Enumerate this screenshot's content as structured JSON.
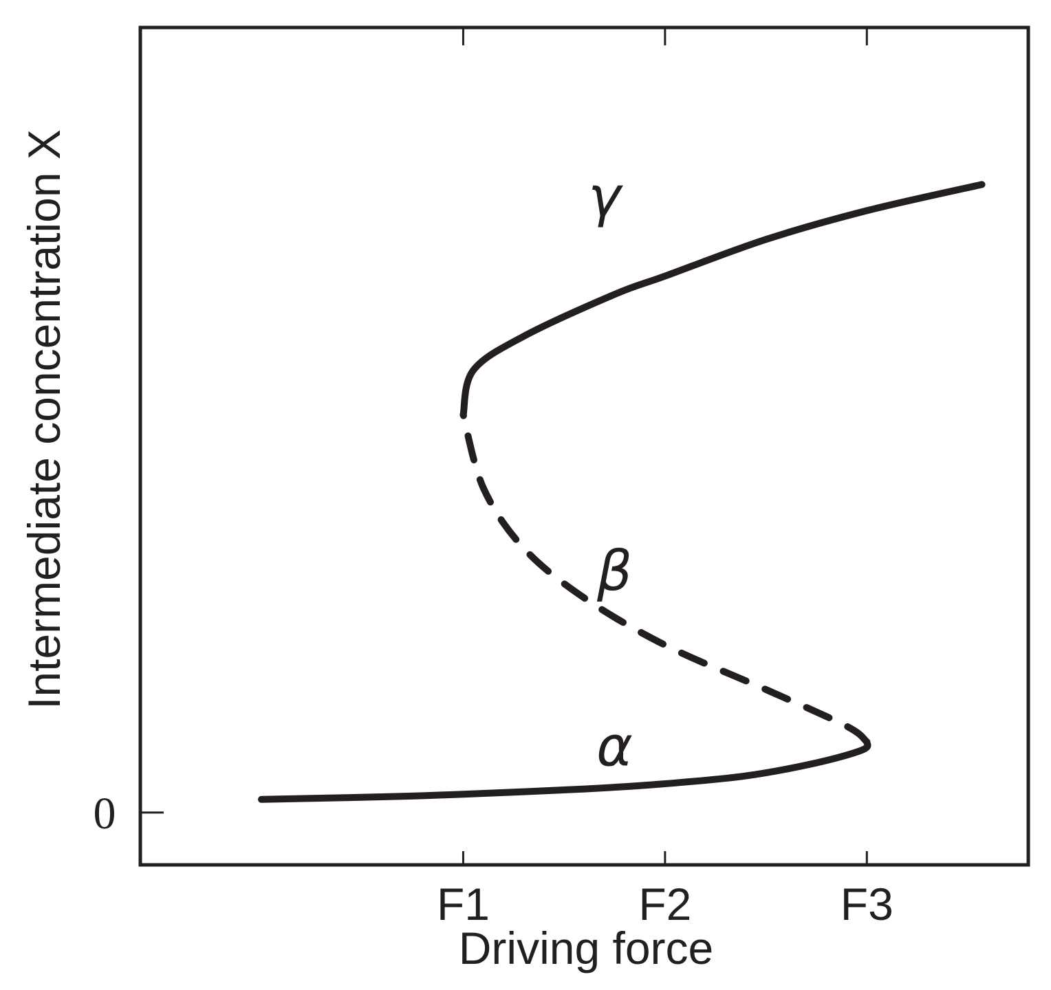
{
  "chart_data": {
    "type": "line",
    "title": "",
    "xlabel": "Driving force",
    "ylabel": "Intermediate  concentration X",
    "x_ticks": [
      "F1",
      "F2",
      "F3"
    ],
    "y_ticks": [
      "0"
    ],
    "grid": false,
    "legend": "none",
    "series": [
      {
        "name": "α",
        "style": "solid",
        "points": [
          [
            0.0,
            0.0
          ],
          [
            0.6,
            0.01
          ],
          [
            1.0,
            0.02
          ],
          [
            1.6,
            0.04
          ],
          [
            2.0,
            0.06
          ],
          [
            2.4,
            0.09
          ],
          [
            2.75,
            0.14
          ],
          [
            2.98,
            0.19
          ],
          [
            3.0,
            0.22
          ]
        ]
      },
      {
        "name": "β",
        "style": "dashed",
        "points": [
          [
            3.0,
            0.22
          ],
          [
            2.9,
            0.28
          ],
          [
            2.5,
            0.42
          ],
          [
            2.0,
            0.59
          ],
          [
            1.6,
            0.77
          ],
          [
            1.3,
            0.96
          ],
          [
            1.1,
            1.19
          ],
          [
            1.0,
            1.47
          ]
        ]
      },
      {
        "name": "γ",
        "style": "solid",
        "points": [
          [
            1.0,
            1.47
          ],
          [
            1.05,
            1.64
          ],
          [
            1.3,
            1.77
          ],
          [
            1.75,
            1.93
          ],
          [
            2.0,
            2.0
          ],
          [
            2.5,
            2.14
          ],
          [
            3.0,
            2.25
          ],
          [
            3.57,
            2.35
          ]
        ]
      }
    ],
    "xlim": [
      -0.6,
      3.8
    ],
    "ylim": [
      -0.25,
      2.95
    ]
  },
  "colors": {
    "ink": "#231f20",
    "background": "#ffffff"
  }
}
